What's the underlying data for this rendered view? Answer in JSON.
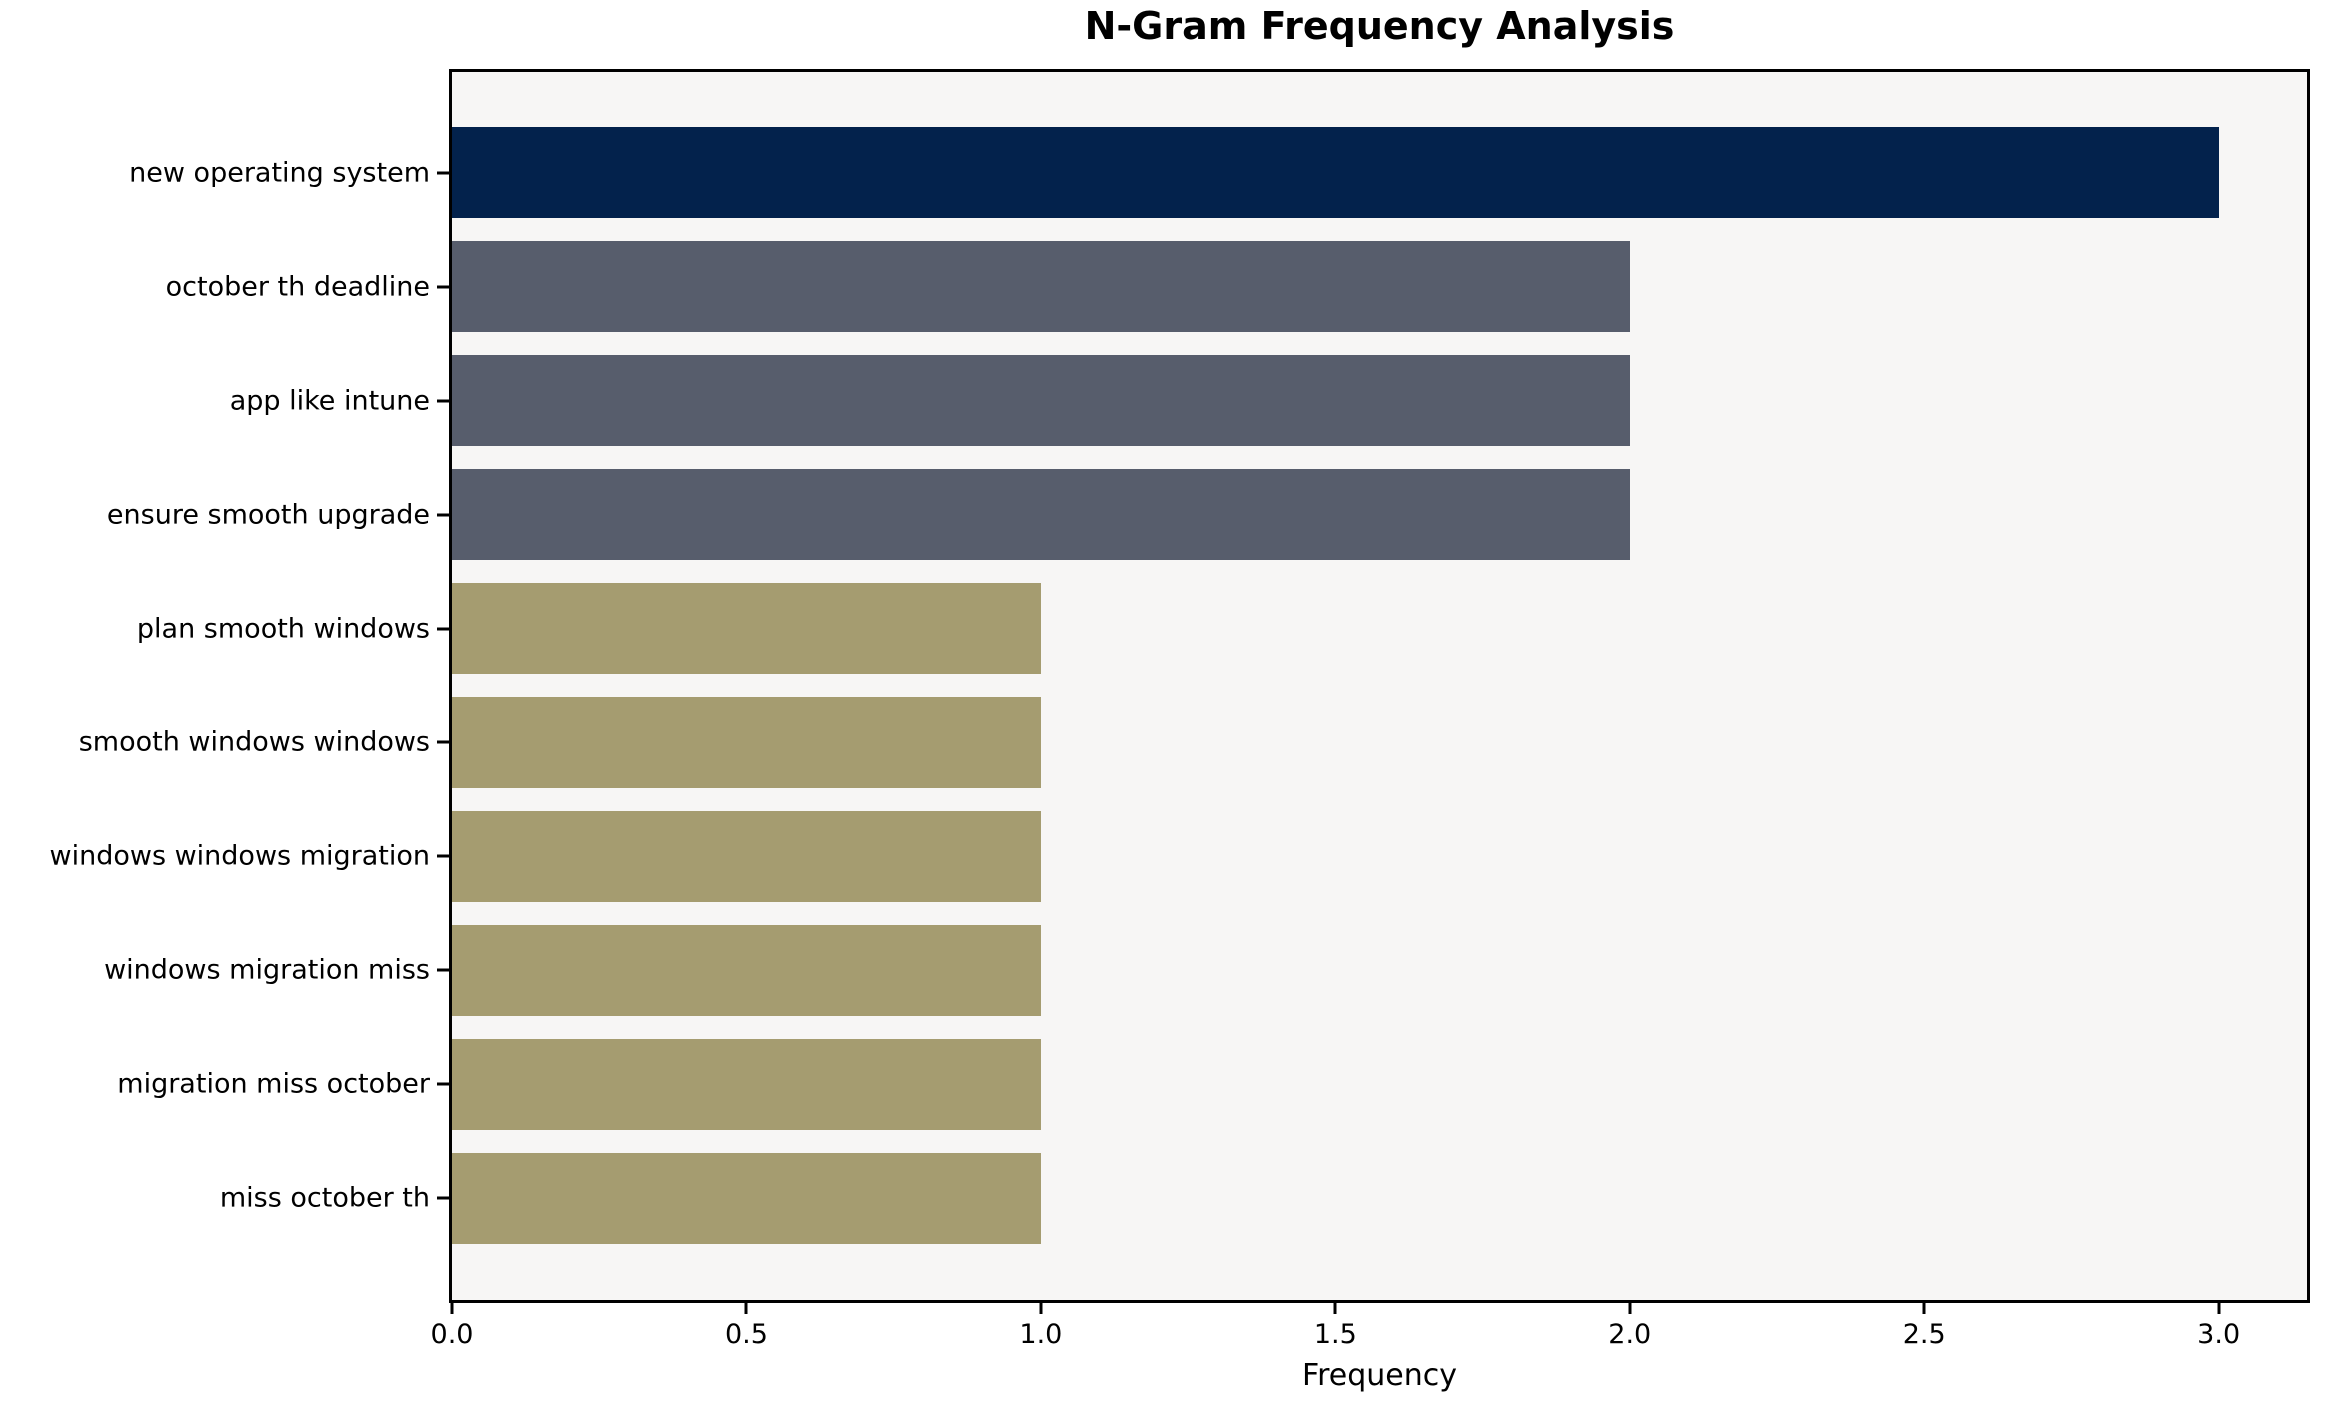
{
  "chart_data": {
    "type": "bar",
    "orientation": "horizontal",
    "title": "N-Gram Frequency Analysis",
    "xlabel": "Frequency",
    "ylabel": "",
    "categories": [
      "new operating system",
      "october th deadline",
      "app like intune",
      "ensure smooth upgrade",
      "plan smooth windows",
      "smooth windows windows",
      "windows windows migration",
      "windows migration miss",
      "migration miss october",
      "miss october th"
    ],
    "values": [
      3,
      2,
      2,
      2,
      1,
      1,
      1,
      1,
      1,
      1
    ],
    "xlim": [
      0,
      3.15
    ],
    "xtick_values": [
      0,
      0.5,
      1,
      1.5,
      2,
      2.5,
      3
    ],
    "xtick_labels": [
      "0.0",
      "0.5",
      "1.0",
      "1.5",
      "2.0",
      "2.5",
      "3.0"
    ],
    "grid": false,
    "legend": false,
    "colors": {
      "value_3": "#03224c",
      "value_2": "#575d6c",
      "value_1": "#a59c70"
    },
    "plot_background": "#f7f6f5",
    "figure_background": "#ffffff",
    "spine_color": "#000000"
  }
}
